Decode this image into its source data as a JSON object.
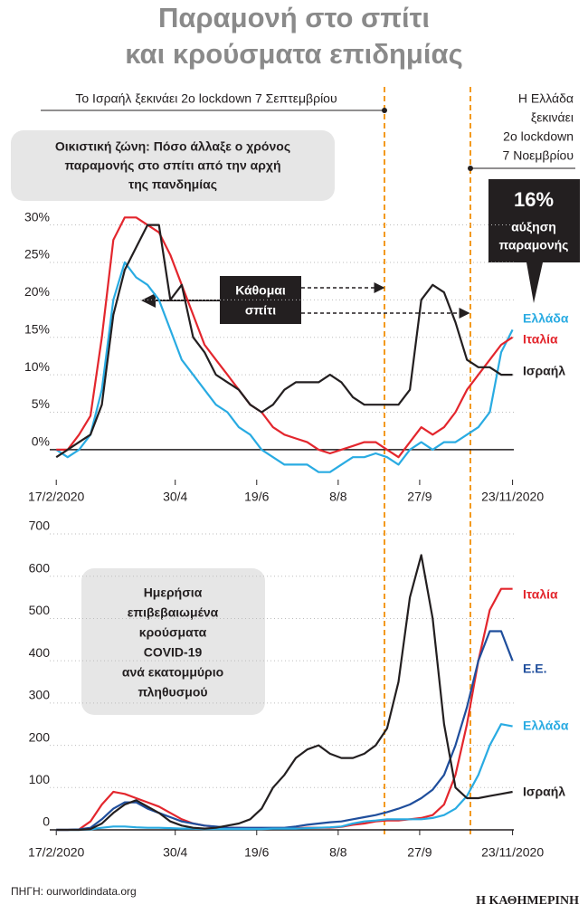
{
  "header": {
    "title": [
      "Παραμονή στο σπίτι",
      "και κρούσματα επιδημίας"
    ]
  },
  "events": [
    {
      "lines": [
        "Το Ισραήλ ξεκινάει 2ο lockdown 7 Σεπτεμβρίου"
      ]
    },
    {
      "lines": [
        "Η Ελλάδα",
        "ξεκινάει",
        "2ο lockdown",
        "7 Νοεμβρίου"
      ]
    }
  ],
  "chart_data": [
    {
      "type": "line",
      "box": [
        "Οικιστική ζώνη: Πόσο άλλαξε ο χρόνος",
        "παραμονής στο σπίτι από την αρχή",
        "της πανδημίας"
      ],
      "callout": [
        "16%",
        "αύξηση",
        "παραμονής"
      ],
      "label": [
        "Κάθομαι",
        "σπίτι"
      ],
      "x": [
        "2020-02-17",
        "2020-02-24",
        "2020-03-02",
        "2020-03-09",
        "2020-03-16",
        "2020-03-23",
        "2020-03-30",
        "2020-04-06",
        "2020-04-13",
        "2020-04-20",
        "2020-04-27",
        "2020-05-04",
        "2020-05-11",
        "2020-05-18",
        "2020-05-25",
        "2020-06-01",
        "2020-06-08",
        "2020-06-15",
        "2020-06-22",
        "2020-06-29",
        "2020-07-06",
        "2020-07-13",
        "2020-07-20",
        "2020-07-27",
        "2020-08-03",
        "2020-08-10",
        "2020-08-17",
        "2020-08-24",
        "2020-08-31",
        "2020-09-07",
        "2020-09-14",
        "2020-09-21",
        "2020-09-28",
        "2020-10-05",
        "2020-10-12",
        "2020-10-19",
        "2020-10-26",
        "2020-11-02",
        "2020-11-09",
        "2020-11-16",
        "2020-11-23"
      ],
      "series": [
        {
          "name": "Ελλάδα",
          "color": "#29abe2",
          "values": [
            0,
            -1,
            0,
            2,
            8,
            20,
            25,
            23,
            22,
            20,
            16,
            12,
            10,
            8,
            6,
            5,
            3,
            2,
            0,
            -1,
            -2,
            -2,
            -2,
            -3,
            -3,
            -2,
            -1,
            -1,
            -0.5,
            -1,
            -2,
            0,
            1,
            0,
            1,
            1,
            2,
            3,
            5,
            13,
            16
          ]
        },
        {
          "name": "Ιταλία",
          "color": "#e3262d",
          "values": [
            0,
            0,
            2,
            4.5,
            15,
            28,
            31,
            31,
            30,
            29,
            26,
            22,
            18,
            14,
            12,
            10,
            8,
            6,
            5,
            3,
            2,
            1.5,
            1,
            0,
            -0.5,
            0,
            0.5,
            1,
            1,
            0,
            -1,
            1,
            3,
            2,
            3,
            5,
            8,
            10,
            12,
            14,
            15
          ]
        },
        {
          "name": "Ισραήλ",
          "color": "#231f20",
          "values": [
            -1,
            0,
            1,
            2,
            6,
            18,
            24,
            27,
            30,
            30,
            20,
            22,
            15,
            13,
            10,
            9,
            8,
            6,
            5,
            6,
            8,
            9,
            9,
            9,
            10,
            9,
            7,
            6,
            6,
            6,
            6,
            8,
            20,
            22,
            21,
            17,
            12,
            11,
            11,
            10,
            10
          ]
        }
      ],
      "xlim": [
        "2020-02-13",
        "2020-11-26"
      ],
      "xticks": [
        {
          "value": "2020-02-17",
          "label": "17/2/2020"
        },
        {
          "value": "2020-04-30",
          "label": "30/4"
        },
        {
          "value": "2020-06-19",
          "label": "19/6"
        },
        {
          "value": "2020-08-08",
          "label": "8/8"
        },
        {
          "value": "2020-09-27",
          "label": "27/9"
        },
        {
          "value": "2020-11-23",
          "label": "23/11/2020"
        }
      ],
      "ylim": [
        -4,
        32
      ],
      "yticks": [
        {
          "value": 0,
          "label": "0%"
        },
        {
          "value": 5,
          "label": "5%"
        },
        {
          "value": 10,
          "label": "10%"
        },
        {
          "value": 15,
          "label": "15%"
        },
        {
          "value": 20,
          "label": "20%"
        },
        {
          "value": 25,
          "label": "25%"
        },
        {
          "value": 30,
          "label": "30%"
        }
      ],
      "grid": true
    },
    {
      "type": "line",
      "box": [
        "Ημερήσια",
        "επιβεβαιωμένα",
        "κρούσματα",
        "COVID-19",
        "ανά εκατομμύριο",
        "πληθυσμού"
      ],
      "x": [
        "2020-02-17",
        "2020-02-24",
        "2020-03-02",
        "2020-03-09",
        "2020-03-16",
        "2020-03-23",
        "2020-03-30",
        "2020-04-06",
        "2020-04-13",
        "2020-04-20",
        "2020-04-27",
        "2020-05-04",
        "2020-05-11",
        "2020-05-18",
        "2020-05-25",
        "2020-06-01",
        "2020-06-08",
        "2020-06-15",
        "2020-06-22",
        "2020-06-29",
        "2020-07-06",
        "2020-07-13",
        "2020-07-20",
        "2020-07-27",
        "2020-08-03",
        "2020-08-10",
        "2020-08-17",
        "2020-08-24",
        "2020-08-31",
        "2020-09-07",
        "2020-09-14",
        "2020-09-21",
        "2020-09-28",
        "2020-10-05",
        "2020-10-12",
        "2020-10-19",
        "2020-10-26",
        "2020-11-02",
        "2020-11-09",
        "2020-11-16",
        "2020-11-23"
      ],
      "series": [
        {
          "name": "Ιταλία",
          "color": "#e3262d",
          "values": [
            0,
            0,
            1,
            20,
            60,
            90,
            85,
            75,
            65,
            55,
            40,
            25,
            15,
            10,
            7,
            5,
            5,
            4,
            4,
            4,
            4,
            4,
            5,
            5,
            5,
            7,
            12,
            15,
            20,
            22,
            22,
            25,
            28,
            35,
            60,
            130,
            250,
            400,
            520,
            570,
            570
          ]
        },
        {
          "name": "Ε.Ε.",
          "color": "#1f4e9c",
          "values": [
            0,
            0,
            1,
            5,
            25,
            50,
            65,
            65,
            50,
            40,
            30,
            20,
            15,
            10,
            8,
            5,
            5,
            5,
            5,
            5,
            5,
            8,
            12,
            15,
            18,
            20,
            25,
            30,
            35,
            42,
            50,
            60,
            75,
            95,
            130,
            200,
            290,
            400,
            470,
            470,
            400
          ]
        },
        {
          "name": "Ελλάδα",
          "color": "#29abe2",
          "values": [
            0,
            0,
            0,
            1,
            5,
            8,
            8,
            6,
            5,
            5,
            4,
            3,
            3,
            2,
            2,
            2,
            2,
            2,
            2,
            3,
            3,
            3,
            4,
            5,
            6,
            8,
            15,
            20,
            22,
            25,
            25,
            25,
            25,
            28,
            35,
            50,
            80,
            130,
            200,
            250,
            245
          ]
        },
        {
          "name": "Ισραήλ",
          "color": "#231f20",
          "values": [
            0,
            0,
            0,
            2,
            15,
            40,
            60,
            70,
            55,
            40,
            20,
            10,
            5,
            3,
            5,
            10,
            15,
            25,
            50,
            100,
            130,
            170,
            190,
            200,
            180,
            170,
            170,
            180,
            200,
            240,
            350,
            550,
            650,
            500,
            250,
            100,
            75,
            75,
            80,
            85,
            90
          ]
        }
      ],
      "xlim": [
        "2020-02-13",
        "2020-11-26"
      ],
      "xticks": [
        {
          "value": "2020-02-17",
          "label": "17/2/2020"
        },
        {
          "value": "2020-04-30",
          "label": "30/4"
        },
        {
          "value": "2020-06-19",
          "label": "19/6"
        },
        {
          "value": "2020-08-08",
          "label": "8/8"
        },
        {
          "value": "2020-09-27",
          "label": "27/9"
        },
        {
          "value": "2020-11-23",
          "label": "23/11/2020"
        }
      ],
      "ylim": [
        0,
        730
      ],
      "yticks": [
        0,
        100,
        200,
        300,
        400,
        500,
        600,
        700
      ],
      "grid": true
    }
  ],
  "footer": {
    "source": "ΠΗΓΗ: ourworldindata.org",
    "publisher": "Η ΚΑΘΗΜΕΡΙΝΗ"
  }
}
